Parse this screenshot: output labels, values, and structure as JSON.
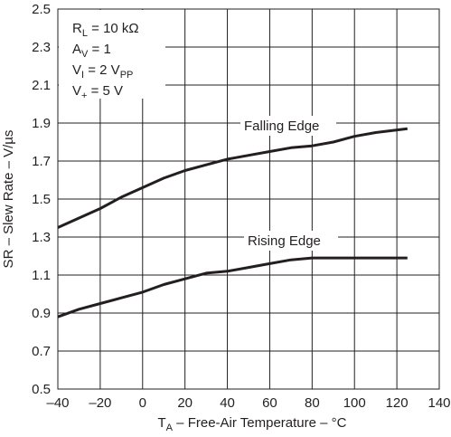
{
  "chart_data": {
    "type": "line",
    "xlabel": {
      "main": "T",
      "sub": "A",
      "rest": " – Free-Air Temperature – °C"
    },
    "ylabel": "SR – Slew Rate – V/µs",
    "xlim": [
      -40,
      140
    ],
    "ylim": [
      0.5,
      2.5
    ],
    "xticks": [
      "–40",
      "–20",
      "0",
      "20",
      "40",
      "60",
      "80",
      "100",
      "120",
      "140"
    ],
    "xtick_values": [
      -40,
      -20,
      0,
      20,
      40,
      60,
      80,
      100,
      120,
      140
    ],
    "yticks": [
      "0.5",
      "0.7",
      "0.9",
      "1.1",
      "1.3",
      "1.5",
      "1.7",
      "1.9",
      "2.1",
      "2.3",
      "2.5"
    ],
    "ytick_values": [
      0.5,
      0.7,
      0.9,
      1.1,
      1.3,
      1.5,
      1.7,
      1.9,
      2.1,
      2.3,
      2.5
    ],
    "grid": true,
    "conditions": [
      {
        "main": "R",
        "sub": "L",
        "rest": " = 10 kΩ"
      },
      {
        "main": "A",
        "sub": "V",
        "rest": " = 1"
      },
      {
        "main": "V",
        "sub": "I",
        "rest": " = 2 V",
        "sub2": "PP"
      },
      {
        "main": "V",
        "sub": "+",
        "rest": " = 5 V"
      }
    ],
    "series": [
      {
        "name": "Falling Edge",
        "x": [
          -40,
          -30,
          -20,
          -10,
          0,
          10,
          20,
          30,
          40,
          50,
          60,
          70,
          80,
          90,
          100,
          110,
          125
        ],
        "y": [
          1.35,
          1.4,
          1.45,
          1.51,
          1.56,
          1.61,
          1.65,
          1.68,
          1.71,
          1.73,
          1.75,
          1.77,
          1.78,
          1.8,
          1.83,
          1.85,
          1.87
        ]
      },
      {
        "name": "Rising Edge",
        "x": [
          -40,
          -30,
          -20,
          -10,
          0,
          10,
          20,
          30,
          40,
          50,
          60,
          70,
          80,
          90,
          100,
          110,
          125
        ],
        "y": [
          0.88,
          0.92,
          0.95,
          0.98,
          1.01,
          1.05,
          1.08,
          1.11,
          1.12,
          1.14,
          1.16,
          1.18,
          1.19,
          1.19,
          1.19,
          1.19,
          1.19
        ]
      }
    ],
    "colors": {
      "line": "#231f20",
      "grid": "#231f20",
      "background": "#ffffff"
    }
  }
}
